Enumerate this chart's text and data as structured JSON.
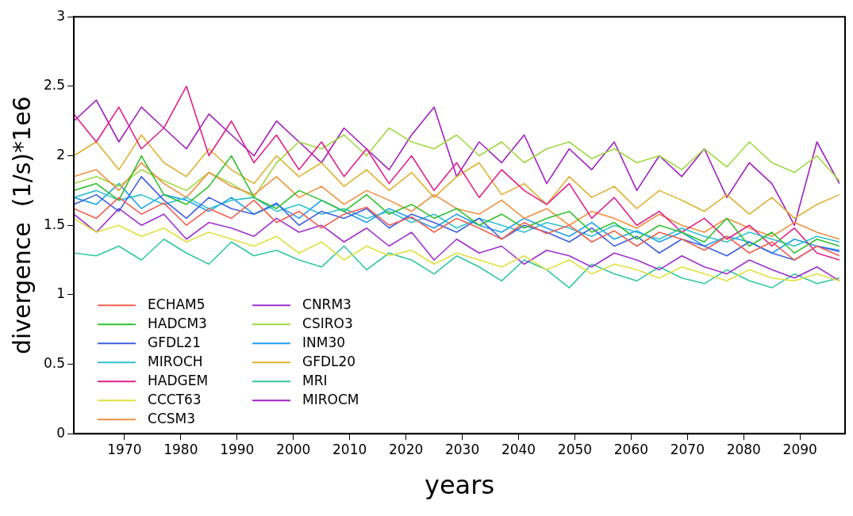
{
  "chart_data": {
    "type": "line",
    "xlabel": "years",
    "ylabel": "divergence  (1/s)*1e6",
    "xlim": [
      1961,
      2098
    ],
    "ylim": [
      0,
      3
    ],
    "xticks": [
      1970,
      1980,
      1990,
      2000,
      2010,
      2020,
      2030,
      2040,
      2050,
      2060,
      2070,
      2080,
      2090
    ],
    "yticks": [
      0,
      0.5,
      1,
      1.5,
      2,
      2.5,
      3
    ],
    "grid": false,
    "legend": "bottom left",
    "marker": "none",
    "line_style": "solid",
    "x": [
      1961,
      1965,
      1969,
      1973,
      1977,
      1981,
      1985,
      1989,
      1993,
      1997,
      2001,
      2005,
      2009,
      2013,
      2017,
      2021,
      2025,
      2029,
      2033,
      2037,
      2041,
      2045,
      2049,
      2053,
      2057,
      2061,
      2065,
      2069,
      2073,
      2077,
      2081,
      2085,
      2089,
      2093,
      2097
    ],
    "series": [
      {
        "name": "ECHAM5",
        "color": "#f06050",
        "values": [
          1.62,
          1.55,
          1.7,
          1.58,
          1.66,
          1.5,
          1.62,
          1.55,
          1.68,
          1.52,
          1.6,
          1.48,
          1.58,
          1.63,
          1.5,
          1.56,
          1.45,
          1.55,
          1.48,
          1.4,
          1.52,
          1.44,
          1.5,
          1.38,
          1.46,
          1.35,
          1.45,
          1.4,
          1.32,
          1.42,
          1.3,
          1.38,
          1.25,
          1.35,
          1.28
        ]
      },
      {
        "name": "HADCM3",
        "color": "#30c030",
        "values": [
          1.75,
          1.8,
          1.68,
          2.0,
          1.72,
          1.65,
          1.78,
          2.0,
          1.7,
          1.62,
          1.75,
          1.68,
          1.6,
          1.72,
          1.58,
          1.65,
          1.55,
          1.62,
          1.5,
          1.58,
          1.48,
          1.55,
          1.6,
          1.45,
          1.52,
          1.4,
          1.5,
          1.45,
          1.38,
          1.55,
          1.35,
          1.45,
          1.3,
          1.4,
          1.35
        ]
      },
      {
        "name": "GFDL21",
        "color": "#4060e0",
        "values": [
          1.65,
          1.72,
          1.6,
          1.85,
          1.68,
          1.55,
          1.7,
          1.62,
          1.58,
          1.66,
          1.5,
          1.6,
          1.55,
          1.62,
          1.48,
          1.58,
          1.52,
          1.45,
          1.55,
          1.4,
          1.5,
          1.45,
          1.38,
          1.48,
          1.35,
          1.42,
          1.3,
          1.4,
          1.35,
          1.28,
          1.38,
          1.3,
          1.25,
          1.35,
          1.31
        ]
      },
      {
        "name": "MIROCH",
        "color": "#30c0d0",
        "values": [
          1.7,
          1.75,
          1.68,
          1.72,
          1.65,
          1.7,
          1.62,
          1.68,
          1.7,
          1.6,
          1.65,
          1.58,
          1.62,
          1.55,
          1.6,
          1.52,
          1.58,
          1.48,
          1.55,
          1.5,
          1.45,
          1.52,
          1.48,
          1.42,
          1.5,
          1.45,
          1.4,
          1.48,
          1.42,
          1.38,
          1.45,
          1.4,
          1.35,
          1.42,
          1.38
        ]
      },
      {
        "name": "HADGEM",
        "color": "#e0208a",
        "values": [
          2.3,
          2.1,
          2.35,
          2.05,
          2.2,
          2.5,
          2.0,
          2.25,
          1.95,
          2.15,
          1.9,
          2.1,
          1.85,
          2.05,
          1.8,
          2.0,
          1.75,
          1.95,
          1.7,
          1.9,
          1.75,
          1.65,
          1.8,
          1.55,
          1.7,
          1.5,
          1.6,
          1.45,
          1.55,
          1.4,
          1.5,
          1.35,
          1.48,
          1.3,
          1.25
        ]
      },
      {
        "name": "CCCT63",
        "color": "#e0e040",
        "values": [
          1.55,
          1.45,
          1.5,
          1.42,
          1.48,
          1.38,
          1.45,
          1.4,
          1.35,
          1.42,
          1.3,
          1.38,
          1.25,
          1.35,
          1.28,
          1.32,
          1.22,
          1.3,
          1.25,
          1.2,
          1.28,
          1.18,
          1.25,
          1.15,
          1.22,
          1.18,
          1.12,
          1.2,
          1.15,
          1.1,
          1.18,
          1.12,
          1.1,
          1.15,
          1.1
        ]
      },
      {
        "name": "CCSM3",
        "color": "#f09040",
        "values": [
          1.85,
          1.9,
          1.75,
          1.95,
          1.8,
          1.7,
          1.88,
          1.78,
          1.72,
          1.85,
          1.7,
          1.78,
          1.65,
          1.75,
          1.68,
          1.6,
          1.72,
          1.62,
          1.58,
          1.68,
          1.55,
          1.62,
          1.5,
          1.6,
          1.55,
          1.48,
          1.58,
          1.5,
          1.45,
          1.55,
          1.48,
          1.42,
          1.52,
          1.45,
          1.4
        ]
      },
      {
        "name": "CNRM3",
        "color": "#a030d0",
        "values": [
          1.58,
          1.45,
          1.62,
          1.5,
          1.58,
          1.4,
          1.52,
          1.48,
          1.42,
          1.55,
          1.45,
          1.5,
          1.38,
          1.48,
          1.35,
          1.45,
          1.25,
          1.4,
          1.3,
          1.35,
          1.22,
          1.32,
          1.28,
          1.2,
          1.3,
          1.25,
          1.18,
          1.28,
          1.2,
          1.15,
          1.25,
          1.18,
          1.12,
          1.2,
          1.1
        ]
      },
      {
        "name": "CSIRO3",
        "color": "#a0d840",
        "values": [
          1.8,
          1.85,
          1.78,
          1.9,
          1.82,
          1.75,
          1.88,
          1.8,
          1.7,
          1.95,
          2.1,
          2.05,
          2.15,
          2.0,
          2.2,
          2.1,
          2.05,
          2.15,
          2.0,
          2.1,
          1.95,
          2.05,
          2.1,
          1.98,
          2.05,
          1.95,
          2.0,
          1.9,
          2.05,
          1.92,
          2.1,
          1.95,
          1.88,
          2.0,
          1.82
        ]
      },
      {
        "name": "INM30",
        "color": "#20a0f0",
        "values": [
          1.7,
          1.65,
          1.8,
          1.62,
          1.72,
          1.68,
          1.6,
          1.7,
          1.58,
          1.65,
          1.55,
          1.68,
          1.6,
          1.52,
          1.62,
          1.55,
          1.48,
          1.58,
          1.5,
          1.45,
          1.55,
          1.48,
          1.42,
          1.52,
          1.4,
          1.46,
          1.38,
          1.45,
          1.35,
          1.42,
          1.38,
          1.3,
          1.4,
          1.35,
          1.32
        ]
      },
      {
        "name": "GFDL20",
        "color": "#e0b030",
        "values": [
          2.0,
          2.1,
          1.9,
          2.15,
          1.95,
          1.85,
          2.05,
          1.9,
          1.8,
          2.0,
          1.85,
          1.95,
          1.78,
          1.9,
          1.75,
          1.88,
          1.7,
          1.85,
          1.95,
          1.72,
          1.8,
          1.65,
          1.85,
          1.7,
          1.78,
          1.62,
          1.75,
          1.68,
          1.6,
          1.72,
          1.58,
          1.7,
          1.55,
          1.65,
          1.72
        ]
      },
      {
        "name": "MRI",
        "color": "#30c8a0",
        "values": [
          1.3,
          1.28,
          1.35,
          1.25,
          1.4,
          1.3,
          1.22,
          1.38,
          1.28,
          1.32,
          1.25,
          1.2,
          1.35,
          1.18,
          1.3,
          1.25,
          1.15,
          1.28,
          1.2,
          1.1,
          1.25,
          1.18,
          1.05,
          1.22,
          1.15,
          1.1,
          1.2,
          1.12,
          1.08,
          1.18,
          1.1,
          1.05,
          1.15,
          1.08,
          1.12
        ]
      },
      {
        "name": "MIROCM",
        "color": "#a020c0",
        "values": [
          2.25,
          2.4,
          2.1,
          2.35,
          2.2,
          2.05,
          2.3,
          2.15,
          2.0,
          2.25,
          2.1,
          1.95,
          2.2,
          2.05,
          1.9,
          2.15,
          2.35,
          1.85,
          2.1,
          1.95,
          2.15,
          1.8,
          2.05,
          1.9,
          2.1,
          1.75,
          2.0,
          1.85,
          2.05,
          1.7,
          1.95,
          1.8,
          1.5,
          2.1,
          1.8
        ]
      }
    ]
  }
}
